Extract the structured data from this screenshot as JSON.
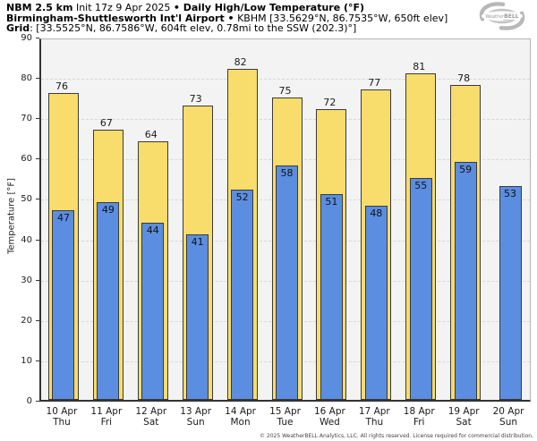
{
  "header": {
    "line1_bold": "NBM 2.5 km",
    "line1_mid": " Init 17z 9 Apr 2025 ",
    "line1_bold2": "• Daily High/Low Temperature (°F)",
    "line2_bold": "Birmingham-Shuttlesworth Int'l Airport •",
    "line2_rest": " KBHM [33.5629°N, 86.7535°W, 650ft elev]",
    "line3_bold": "Grid",
    "line3_rest": ": [33.5525°N, 86.7586°W, 604ft elev, 0.78mi to the SSW (202.3)°]"
  },
  "logo": {
    "text_weather": "Weather",
    "text_bell": "BELL"
  },
  "chart_data": {
    "type": "bar",
    "title": "NBM 2.5 km Init 17z 9 Apr 2025 • Daily High/Low Temperature (°F)",
    "subtitle": "Birmingham-Shuttlesworth Int'l Airport • KBHM [33.5629°N, 86.7535°W, 650ft elev]",
    "categories": [
      {
        "date": "10 Apr",
        "day": "Thu"
      },
      {
        "date": "11 Apr",
        "day": "Fri"
      },
      {
        "date": "12 Apr",
        "day": "Sat"
      },
      {
        "date": "13 Apr",
        "day": "Sun"
      },
      {
        "date": "14 Apr",
        "day": "Mon"
      },
      {
        "date": "15 Apr",
        "day": "Tue"
      },
      {
        "date": "16 Apr",
        "day": "Wed"
      },
      {
        "date": "17 Apr",
        "day": "Thu"
      },
      {
        "date": "18 Apr",
        "day": "Fri"
      },
      {
        "date": "19 Apr",
        "day": "Sat"
      },
      {
        "date": "20 Apr",
        "day": "Sun"
      }
    ],
    "series": [
      {
        "name": "Daily High",
        "color": "#f8dc6c",
        "values": [
          76,
          67,
          64,
          73,
          82,
          75,
          72,
          77,
          81,
          78,
          null
        ]
      },
      {
        "name": "Daily Low",
        "color": "#5b8ee0",
        "values": [
          47,
          49,
          44,
          41,
          52,
          58,
          51,
          48,
          55,
          59,
          53
        ]
      }
    ],
    "ylabel": "Temperature [°F]",
    "ylim": [
      0,
      90
    ],
    "ytick_step": 10,
    "grid": true,
    "grid_style": "dashed",
    "legend": false,
    "plot_background": "#f3f3f3",
    "bar_border_color": "#3a3a3a"
  },
  "footer": {
    "copyright": "© 2025 WeatherBELL Analytics, LLC. All rights reserved. License required for commercial distribution."
  }
}
